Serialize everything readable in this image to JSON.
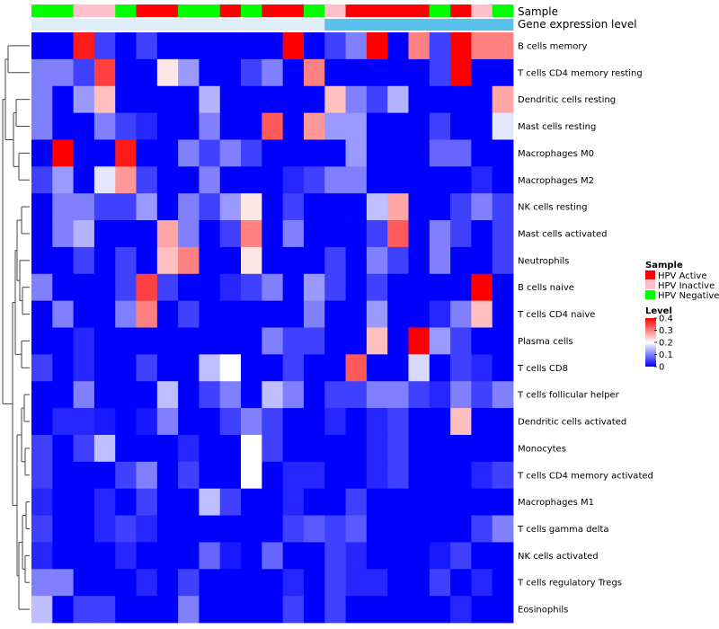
{
  "chart_data": {
    "type": "heatmap",
    "title": "",
    "annotation_tracks": [
      {
        "name": "Sample",
        "values": [
          "N",
          "N",
          "I",
          "I",
          "N",
          "A",
          "A",
          "N",
          "N",
          "A",
          "N",
          "A",
          "A",
          "N",
          "I",
          "A",
          "A",
          "A",
          "A",
          "N",
          "A",
          "I",
          "N"
        ]
      },
      {
        "name": "Gene expression level",
        "values": [
          "L",
          "L",
          "L",
          "L",
          "L",
          "L",
          "L",
          "L",
          "L",
          "L",
          "L",
          "L",
          "L",
          "L",
          "H",
          "H",
          "H",
          "H",
          "H",
          "H",
          "H",
          "H",
          "H"
        ]
      }
    ],
    "rows": [
      "B cells memory",
      "T cells CD4 memory resting",
      "Dendritic cells resting",
      "Mast cells resting",
      "Macrophages M0",
      "Macrophages M2",
      "NK cells resting",
      "Mast cells activated",
      "Neutrophils",
      "B cells naive",
      "T cells CD4 naive",
      "Plasma cells",
      "T cells CD8",
      "T cells follicular helper",
      "Dendritic cells activated",
      "Monocytes",
      "T cells CD4 memory activated",
      "Macrophages M1",
      "T cells gamma delta",
      "NK cells activated",
      "T cells regulatory  Tregs",
      "Eosinophils"
    ],
    "values": [
      [
        0.0,
        0.0,
        0.38,
        0.05,
        0.0,
        0.05,
        0.0,
        0.0,
        0.0,
        0.0,
        0.0,
        0.0,
        0.4,
        0.0,
        0.05,
        0.1,
        0.4,
        0.0,
        0.3,
        0.05,
        0.4,
        0.3,
        0.3
      ],
      [
        0.1,
        0.1,
        0.05,
        0.35,
        0.0,
        0.0,
        0.22,
        0.12,
        0.0,
        0.0,
        0.05,
        0.1,
        0.0,
        0.3,
        0.0,
        0.0,
        0.0,
        0.0,
        0.0,
        0.05,
        0.4,
        0.0,
        0.0
      ],
      [
        0.1,
        0.0,
        0.12,
        0.25,
        0.0,
        0.0,
        0.0,
        0.0,
        0.14,
        0.0,
        0.0,
        0.0,
        0.0,
        0.0,
        0.25,
        0.1,
        0.05,
        0.14,
        0.0,
        0.0,
        0.0,
        0.0,
        0.27
      ],
      [
        0.1,
        0.0,
        0.0,
        0.1,
        0.05,
        0.03,
        0.0,
        0.0,
        0.1,
        0.0,
        0.0,
        0.33,
        0.0,
        0.28,
        0.12,
        0.12,
        0.0,
        0.0,
        0.0,
        0.05,
        0.0,
        0.0,
        0.18
      ],
      [
        0.0,
        0.4,
        0.0,
        0.0,
        0.38,
        0.0,
        0.0,
        0.1,
        0.05,
        0.1,
        0.05,
        0.0,
        0.0,
        0.0,
        0.0,
        0.12,
        0.0,
        0.0,
        0.0,
        0.08,
        0.08,
        0.0,
        0.0
      ],
      [
        0.05,
        0.12,
        0.0,
        0.18,
        0.28,
        0.05,
        0.0,
        0.0,
        0.1,
        0.0,
        0.0,
        0.0,
        0.03,
        0.05,
        0.1,
        0.1,
        0.0,
        0.0,
        0.0,
        0.0,
        0.0,
        0.03,
        0.0
      ],
      [
        0.0,
        0.1,
        0.1,
        0.05,
        0.05,
        0.12,
        0.0,
        0.1,
        0.05,
        0.12,
        0.22,
        0.0,
        0.05,
        0.0,
        0.0,
        0.0,
        0.15,
        0.27,
        0.0,
        0.0,
        0.05,
        0.1,
        0.05
      ],
      [
        0.0,
        0.1,
        0.14,
        0.0,
        0.0,
        0.0,
        0.27,
        0.1,
        0.0,
        0.05,
        0.3,
        0.0,
        0.1,
        0.0,
        0.0,
        0.0,
        0.05,
        0.33,
        0.0,
        0.1,
        0.05,
        0.0,
        0.05
      ],
      [
        0.0,
        0.0,
        0.05,
        0.0,
        0.05,
        0.0,
        0.25,
        0.3,
        0.0,
        0.0,
        0.22,
        0.0,
        0.0,
        0.0,
        0.05,
        0.0,
        0.1,
        0.05,
        0.0,
        0.1,
        0.0,
        0.0,
        0.05
      ],
      [
        0.1,
        0.0,
        0.0,
        0.0,
        0.05,
        0.35,
        0.05,
        0.0,
        0.0,
        0.03,
        0.05,
        0.1,
        0.0,
        0.12,
        0.05,
        0.0,
        0.05,
        0.0,
        0.0,
        0.0,
        0.0,
        0.4,
        0.0
      ],
      [
        0.0,
        0.1,
        0.0,
        0.0,
        0.1,
        0.3,
        0.0,
        0.05,
        0.0,
        0.0,
        0.0,
        0.0,
        0.0,
        0.1,
        0.0,
        0.0,
        0.12,
        0.0,
        0.0,
        0.03,
        0.1,
        0.25,
        0.0
      ],
      [
        0.0,
        0.0,
        0.03,
        0.0,
        0.0,
        0.0,
        0.0,
        0.0,
        0.0,
        0.0,
        0.0,
        0.1,
        0.05,
        0.05,
        0.0,
        0.0,
        0.25,
        0.0,
        0.4,
        0.12,
        0.05,
        0.0,
        0.0
      ],
      [
        0.05,
        0.0,
        0.03,
        0.0,
        0.0,
        0.05,
        0.0,
        0.0,
        0.15,
        0.2,
        0.0,
        0.0,
        0.05,
        0.0,
        0.0,
        0.33,
        0.0,
        0.0,
        0.17,
        0.0,
        0.05,
        0.03,
        0.0
      ],
      [
        0.0,
        0.0,
        0.1,
        0.0,
        0.0,
        0.0,
        0.15,
        0.0,
        0.05,
        0.1,
        0.0,
        0.15,
        0.1,
        0.0,
        0.05,
        0.05,
        0.1,
        0.1,
        0.05,
        0.03,
        0.1,
        0.05,
        0.1
      ],
      [
        0.0,
        0.03,
        0.03,
        0.02,
        0.0,
        0.02,
        0.1,
        0.0,
        0.0,
        0.05,
        0.1,
        0.05,
        0.0,
        0.0,
        0.03,
        0.0,
        0.03,
        0.05,
        0.0,
        0.0,
        0.25,
        0.0,
        0.0
      ],
      [
        0.05,
        0.0,
        0.05,
        0.15,
        0.0,
        0.0,
        0.0,
        0.03,
        0.0,
        0.0,
        0.2,
        0.05,
        0.0,
        0.0,
        0.0,
        0.0,
        0.03,
        0.05,
        0.0,
        0.0,
        0.0,
        0.0,
        0.0
      ],
      [
        0.05,
        0.0,
        0.0,
        0.0,
        0.05,
        0.1,
        0.0,
        0.05,
        0.0,
        0.0,
        0.2,
        0.0,
        0.03,
        0.03,
        0.0,
        0.0,
        0.03,
        0.05,
        0.0,
        0.0,
        0.0,
        0.03,
        0.05
      ],
      [
        0.03,
        0.0,
        0.0,
        0.03,
        0.0,
        0.05,
        0.0,
        0.0,
        0.15,
        0.05,
        0.0,
        0.0,
        0.03,
        0.0,
        0.0,
        0.05,
        0.0,
        0.0,
        0.0,
        0.0,
        0.0,
        0.0,
        0.0
      ],
      [
        0.05,
        0.0,
        0.0,
        0.03,
        0.05,
        0.03,
        0.0,
        0.0,
        0.0,
        0.0,
        0.0,
        0.0,
        0.05,
        0.07,
        0.05,
        0.07,
        0.0,
        0.0,
        0.0,
        0.0,
        0.0,
        0.05,
        0.1
      ],
      [
        0.03,
        0.0,
        0.0,
        0.0,
        0.03,
        0.0,
        0.0,
        0.0,
        0.08,
        0.02,
        0.0,
        0.08,
        0.0,
        0.0,
        0.05,
        0.03,
        0.0,
        0.0,
        0.0,
        0.02,
        0.05,
        0.0,
        0.0
      ],
      [
        0.1,
        0.1,
        0.0,
        0.0,
        0.0,
        0.03,
        0.0,
        0.05,
        0.0,
        0.0,
        0.0,
        0.0,
        0.03,
        0.0,
        0.05,
        0.03,
        0.03,
        0.0,
        0.0,
        0.05,
        0.0,
        0.03,
        0.0
      ],
      [
        0.15,
        0.0,
        0.05,
        0.05,
        0.0,
        0.0,
        0.0,
        0.1,
        0.0,
        0.0,
        0.0,
        0.0,
        0.05,
        0.0,
        0.05,
        0.0,
        0.0,
        0.0,
        0.0,
        0.0,
        0.03,
        0.0,
        0.0
      ]
    ],
    "color_scale": {
      "min": 0,
      "mid": 0.2,
      "max": 0.4,
      "low_color": "#0000ff",
      "mid_color": "#ffffff",
      "high_color": "#ff0000"
    },
    "legend": {
      "sample_title": "Sample",
      "sample_entries": [
        {
          "key": "A",
          "label": "HPV Active",
          "color": "#ff0000"
        },
        {
          "key": "I",
          "label": "HPV Inactive",
          "color": "#ffc0cb"
        },
        {
          "key": "N",
          "label": "HPV Negative",
          "color": "#00ff00"
        }
      ],
      "level_title": "Level",
      "level_ticks": [
        "0.4",
        "0.3",
        "0.2",
        "0.1",
        "0"
      ],
      "level_tick_values": [
        0.4,
        0.3,
        0.2,
        0.1,
        0
      ],
      "placement": "right"
    },
    "gene_level_colors": {
      "L": "#ddeef8",
      "H": "#5bc0eb"
    },
    "row_dendrogram": true
  }
}
